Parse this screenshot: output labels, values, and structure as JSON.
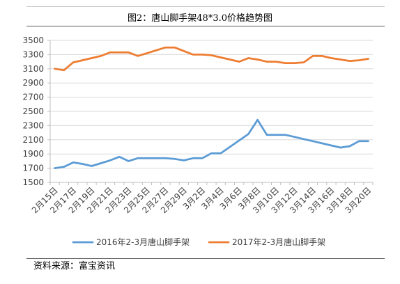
{
  "source": "资料来源：富宝资讯",
  "chart_data": {
    "type": "line",
    "title": "图2：唐山脚手架48*3.0价格趋势图",
    "x_tick_labels": [
      "2月15日",
      "2月17日",
      "2月19日",
      "2月21日",
      "2月23日",
      "2月25日",
      "2月27日",
      "2月29日",
      "3月2日",
      "3月4日",
      "3月6日",
      "3月8日",
      "3月10日",
      "3月12日",
      "3月14日",
      "3月16日",
      "3月18日",
      "3月20日"
    ],
    "yticks": [
      1500,
      1700,
      1900,
      2100,
      2300,
      2500,
      2700,
      2900,
      3100,
      3300,
      3500
    ],
    "ylim": [
      1500,
      3500
    ],
    "grid": true,
    "legend": "bottom",
    "series": [
      {
        "name": "2016年2-3月唐山脚手架",
        "color": "#5B9BD5",
        "values": [
          1700,
          1720,
          1780,
          1760,
          1730,
          1770,
          1810,
          1860,
          1800,
          1840,
          1840,
          1840,
          1840,
          1830,
          1810,
          1840,
          1840,
          1910,
          1910,
          2000,
          2090,
          2180,
          2380,
          2170,
          2170,
          2170,
          2140,
          2110,
          2080,
          2050,
          2020,
          1990,
          2010,
          2080,
          2080
        ]
      },
      {
        "name": "2017年2-3月唐山脚手架",
        "color": "#ED7D31",
        "values": [
          3100,
          3080,
          3190,
          3220,
          3250,
          3280,
          3330,
          3330,
          3330,
          3280,
          3320,
          3360,
          3400,
          3400,
          3350,
          3300,
          3300,
          3290,
          3260,
          3230,
          3200,
          3250,
          3230,
          3200,
          3200,
          3180,
          3180,
          3190,
          3280,
          3280,
          3250,
          3230,
          3210,
          3220,
          3240
        ]
      }
    ]
  }
}
